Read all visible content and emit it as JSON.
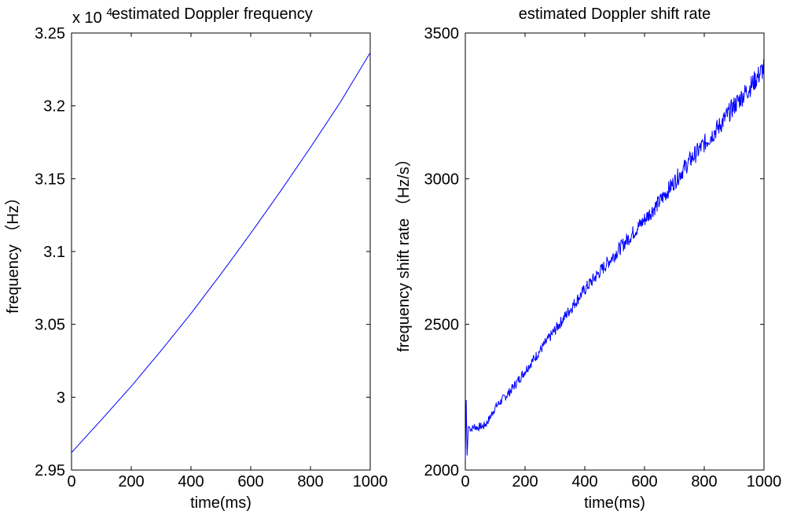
{
  "chart_data": [
    {
      "type": "line",
      "title": "estimated Doppler frequency",
      "xlabel": "time(ms)",
      "ylabel": "frequency （Hz）",
      "exponent_label": {
        "base": "x 10",
        "power": "4"
      },
      "xlim": [
        0,
        1000
      ],
      "ylim": [
        2.95,
        3.25
      ],
      "xticks": [
        "0",
        "200",
        "400",
        "600",
        "800",
        "1000"
      ],
      "yticks": [
        "2.95",
        "3",
        "3.05",
        "3.1",
        "3.15",
        "3.2",
        "3.25"
      ],
      "grid": false,
      "line_color": "#0000ff",
      "series": [
        {
          "x": [
            0,
            100,
            200,
            300,
            400,
            500,
            600,
            700,
            800,
            900,
            1000
          ],
          "values": [
            2.962,
            2.9845,
            3.0075,
            3.032,
            3.0575,
            3.0845,
            3.1125,
            3.1415,
            3.1715,
            3.2025,
            3.2365
          ]
        }
      ]
    },
    {
      "type": "line",
      "title": "estimated Doppler shift rate",
      "xlabel": "time(ms)",
      "ylabel": "frequency shift rate （Hz/s）",
      "xlim": [
        0,
        1000
      ],
      "ylim": [
        2000,
        3500
      ],
      "xticks": [
        "0",
        "200",
        "400",
        "600",
        "800",
        "1000"
      ],
      "yticks": [
        "2000",
        "2500",
        "3000",
        "3500"
      ],
      "grid": false,
      "line_color": "#0000ff",
      "series": [
        {
          "x": [
            0,
            3,
            6,
            10,
            15,
            20,
            30,
            40,
            50,
            60,
            70,
            80,
            100,
            150,
            200,
            250,
            300,
            350,
            400,
            450,
            500,
            550,
            600,
            650,
            700,
            750,
            800,
            850,
            900,
            950,
            1000
          ],
          "values": [
            2040,
            2240,
            2050,
            2150,
            2145,
            2140,
            2150,
            2145,
            2150,
            2150,
            2160,
            2175,
            2215,
            2270,
            2340,
            2410,
            2480,
            2550,
            2620,
            2680,
            2740,
            2800,
            2860,
            2920,
            2990,
            3060,
            3120,
            3180,
            3250,
            3310,
            3380
          ]
        }
      ]
    }
  ]
}
